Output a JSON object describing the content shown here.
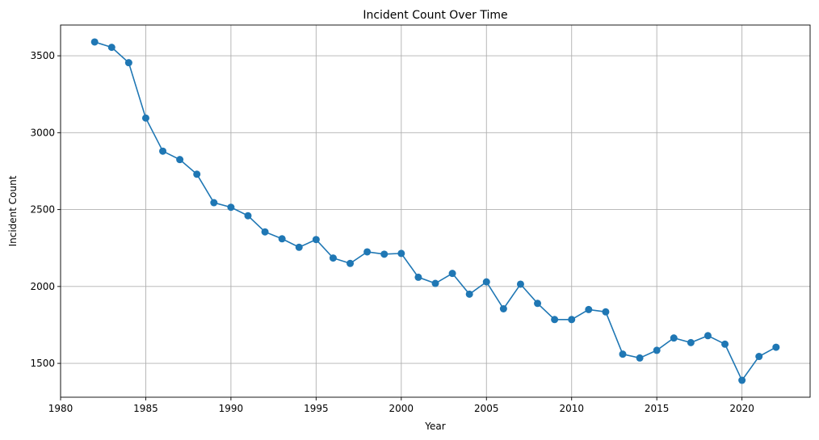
{
  "chart_data": {
    "type": "line",
    "title": "Incident Count Over Time",
    "xlabel": "Year",
    "ylabel": "Incident Count",
    "xlim": [
      1980,
      2024
    ],
    "ylim": [
      1280,
      3700
    ],
    "xticks": [
      1980,
      1985,
      1990,
      1995,
      2000,
      2005,
      2010,
      2015,
      2020
    ],
    "yticks": [
      1500,
      2000,
      2500,
      3000,
      3500
    ],
    "grid": true,
    "markers": "circle",
    "color": "#1f77b4",
    "x": [
      1982,
      1983,
      1984,
      1985,
      1986,
      1987,
      1988,
      1989,
      1990,
      1991,
      1992,
      1993,
      1994,
      1995,
      1996,
      1997,
      1998,
      1999,
      2000,
      2001,
      2002,
      2003,
      2004,
      2005,
      2006,
      2007,
      2008,
      2009,
      2010,
      2011,
      2012,
      2013,
      2014,
      2015,
      2016,
      2017,
      2018,
      2019,
      2020,
      2021,
      2022
    ],
    "series": [
      {
        "values": [
          3590,
          3555,
          3455,
          3095,
          2880,
          2825,
          2730,
          2545,
          2515,
          2460,
          2355,
          2310,
          2255,
          2305,
          2185,
          2150,
          2225,
          2210,
          2215,
          2060,
          2020,
          2085,
          1950,
          2030,
          1855,
          2015,
          1890,
          1785,
          1785,
          1850,
          1835,
          1560,
          1535,
          1585,
          1665,
          1635,
          1680,
          1625,
          1390,
          1545,
          1605
        ]
      }
    ]
  }
}
